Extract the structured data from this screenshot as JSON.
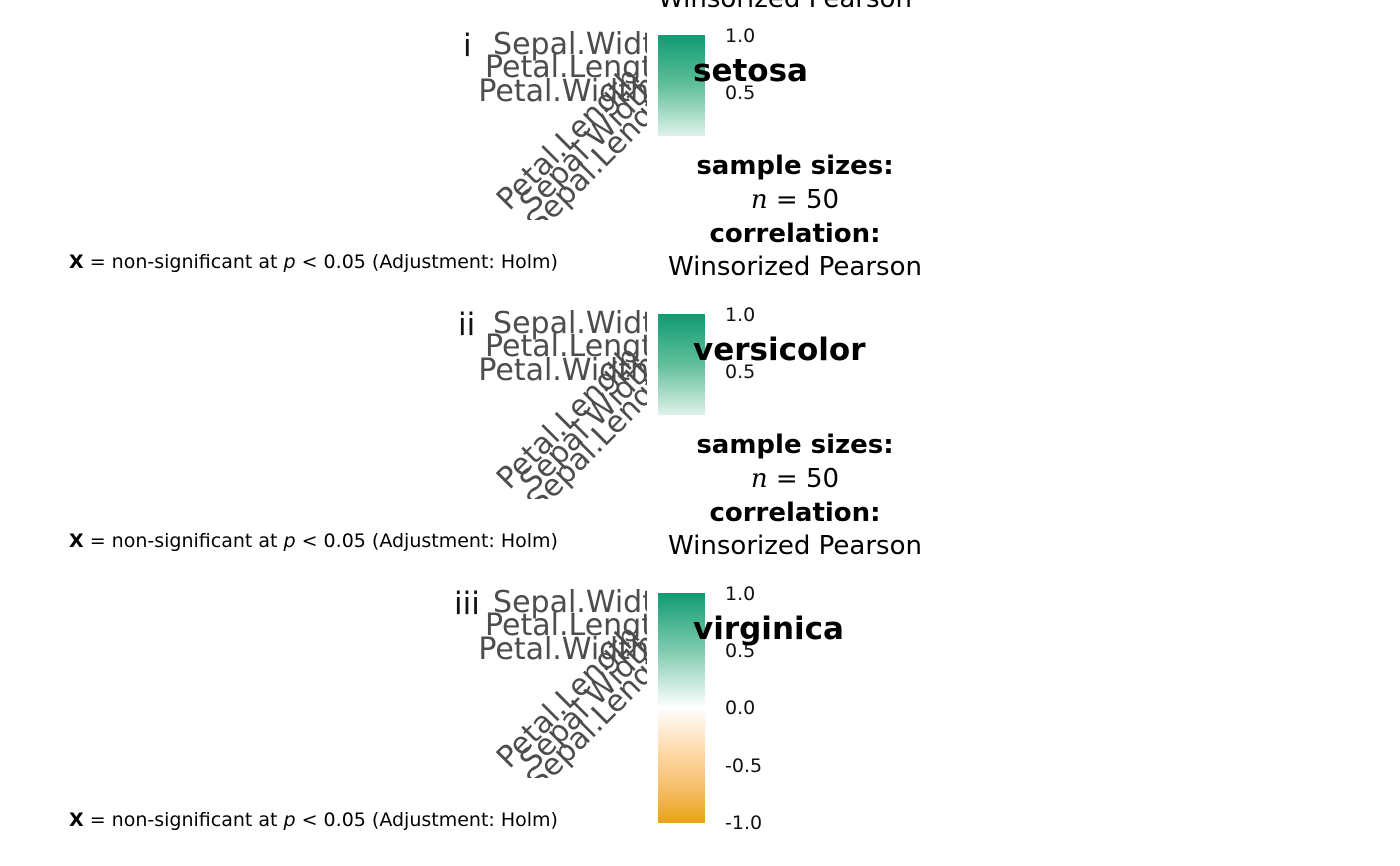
{
  "caption_fragment": "Winsorized Pearson",
  "chart_data": [
    {
      "type": "heatmap",
      "tag": "i",
      "title": "setosa",
      "variables": [
        "Sepal.Width",
        "Petal.Length",
        "Petal.Width"
      ],
      "x_variables": [
        "Petal.Length",
        "Sepal.Width",
        "Sepal.Length"
      ],
      "legend": {
        "title_line1": "sample sizes:",
        "n_symbol": "n",
        "n_expr": " = 50",
        "title_line3": "correlation:",
        "title_line4": "Winsorized Pearson",
        "ticks": [
          "1.0",
          "0.5"
        ],
        "tick_values": [
          1.0,
          0.5
        ],
        "range": [
          0.1,
          1.0
        ]
      },
      "note_prefix": "X",
      "note_text": " = non-significant at ",
      "note_p": "p",
      "note_suffix": " < 0.05 (Adjustment: Holm)"
    },
    {
      "type": "heatmap",
      "tag": "ii",
      "title": "versicolor",
      "variables": [
        "Sepal.Width",
        "Petal.Length",
        "Petal.Width"
      ],
      "x_variables": [
        "Petal.Length",
        "Sepal.Width",
        "Sepal.Length"
      ],
      "legend": {
        "title_line1": "sample sizes:",
        "n_symbol": "n",
        "n_expr": " = 50",
        "title_line3": "correlation:",
        "title_line4": "Winsorized Pearson",
        "ticks": [
          "1.0",
          "0.5"
        ],
        "tick_values": [
          1.0,
          0.5
        ],
        "range": [
          0.1,
          1.0
        ]
      },
      "note_prefix": "X",
      "note_text": " = non-significant at ",
      "note_p": "p",
      "note_suffix": " < 0.05 (Adjustment: Holm)"
    },
    {
      "type": "heatmap",
      "tag": "iii",
      "title": "virginica",
      "variables": [
        "Sepal.Width",
        "Petal.Length",
        "Petal.Width"
      ],
      "x_variables": [
        "Petal.Length",
        "Sepal.Width",
        "Sepal.Length"
      ],
      "legend": {
        "ticks": [
          "1.0",
          "0.5",
          "0.0",
          "-0.5",
          "-1.0"
        ],
        "tick_values": [
          1.0,
          0.5,
          0.0,
          -0.5,
          -1.0
        ],
        "range": [
          -1.0,
          1.0
        ]
      },
      "note_prefix": "X",
      "note_text": " = non-significant at ",
      "note_p": "p",
      "note_suffix": " < 0.05 (Adjustment: Holm)"
    }
  ],
  "colors": {
    "high": "#009E73",
    "mid": "#FFFFFF",
    "low": "#E69F00",
    "label": "#4d4d4d"
  }
}
